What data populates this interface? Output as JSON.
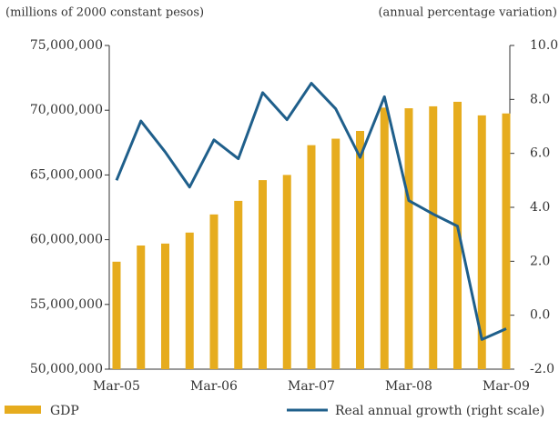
{
  "chart_data": {
    "type": "bar_line",
    "y_label": "(millions of 2000 constant pesos)",
    "y2_label": "(annual percentage variation)",
    "categories": [
      "Mar-05",
      null,
      null,
      null,
      "Mar-06",
      null,
      null,
      null,
      "Mar-07",
      null,
      null,
      null,
      "Mar-08",
      null,
      null,
      null,
      "Mar-09"
    ],
    "series": [
      {
        "name": "GDP",
        "type": "bar",
        "axis": "y",
        "color": "#e6ac1e",
        "values": [
          58300000,
          59550000,
          59700000,
          60550000,
          61950000,
          63000000,
          64600000,
          65000000,
          67300000,
          67800000,
          68400000,
          70200000,
          70150000,
          70300000,
          70650000,
          69600000,
          69750000
        ]
      },
      {
        "name": "Real annual growth (right scale)",
        "type": "line",
        "axis": "y2",
        "color": "#1f5f8b",
        "values": [
          5.0,
          7.2,
          6.05,
          4.75,
          6.5,
          5.8,
          8.25,
          7.25,
          8.6,
          7.65,
          5.85,
          8.1,
          4.25,
          3.75,
          3.3,
          -0.9,
          -0.5
        ]
      }
    ],
    "ylim": [
      50000000,
      75000000
    ],
    "yticks": [
      {
        "value": 50000000,
        "label": "50,000,000"
      },
      {
        "value": 55000000,
        "label": "55,000,000"
      },
      {
        "value": 60000000,
        "label": "60,000,000"
      },
      {
        "value": 65000000,
        "label": "65,000,000"
      },
      {
        "value": 70000000,
        "label": "70,000,000"
      },
      {
        "value": 75000000,
        "label": "75,000,000"
      }
    ],
    "y2lim": [
      -2,
      10
    ],
    "y2ticks": [
      {
        "value": -2,
        "label": "-2.0"
      },
      {
        "value": 0,
        "label": "0.0"
      },
      {
        "value": 2,
        "label": "2.0"
      },
      {
        "value": 4,
        "label": "4.0"
      },
      {
        "value": 6,
        "label": "6.0"
      },
      {
        "value": 8,
        "label": "8.0"
      },
      {
        "value": 10,
        "label": "10.0"
      }
    ]
  }
}
